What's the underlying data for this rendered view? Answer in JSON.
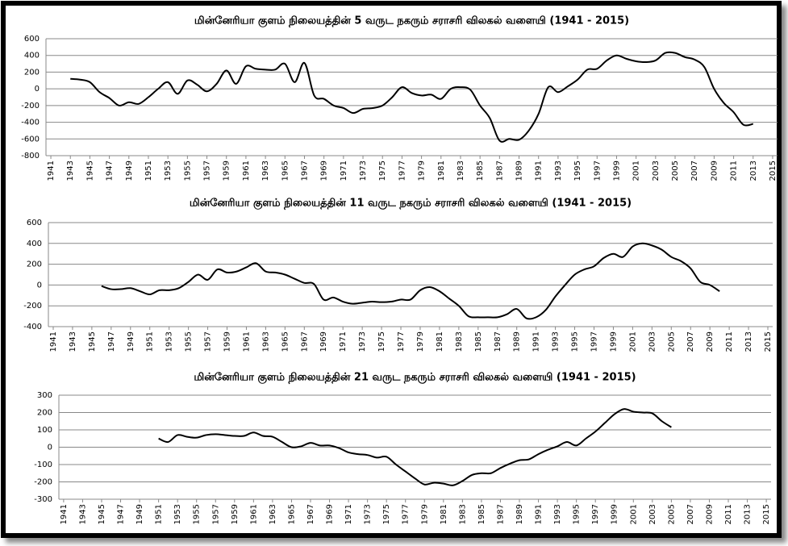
{
  "chart_data": [
    {
      "type": "line",
      "title": "மின்னேரியா குளம் நிலையத்தின் 5  வருட நகரும் சராசரி விலகல் வளையி   (1941 -  2015)",
      "x": [
        1943,
        1944,
        1945,
        1946,
        1947,
        1948,
        1949,
        1950,
        1951,
        1952,
        1953,
        1954,
        1955,
        1956,
        1957,
        1958,
        1959,
        1960,
        1961,
        1962,
        1963,
        1964,
        1965,
        1966,
        1967,
        1968,
        1969,
        1970,
        1971,
        1972,
        1973,
        1974,
        1975,
        1976,
        1977,
        1978,
        1979,
        1980,
        1981,
        1982,
        1983,
        1984,
        1985,
        1986,
        1987,
        1988,
        1989,
        1990,
        1991,
        1992,
        1993,
        1994,
        1995,
        1996,
        1997,
        1998,
        1999,
        2000,
        2001,
        2002,
        2003,
        2004,
        2005,
        2006,
        2007,
        2008,
        2009,
        2010,
        2011,
        2012,
        2013
      ],
      "values": [
        120,
        110,
        80,
        -40,
        -110,
        -200,
        -160,
        -180,
        -100,
        0,
        80,
        -60,
        100,
        50,
        -30,
        60,
        220,
        60,
        270,
        240,
        230,
        230,
        300,
        80,
        310,
        -80,
        -120,
        -200,
        -230,
        -290,
        -240,
        -230,
        -200,
        -100,
        20,
        -50,
        -80,
        -70,
        -120,
        0,
        20,
        -10,
        -200,
        -350,
        -620,
        -600,
        -610,
        -500,
        -300,
        20,
        -40,
        30,
        110,
        230,
        240,
        340,
        400,
        360,
        330,
        320,
        340,
        430,
        430,
        380,
        350,
        260,
        0,
        -170,
        -280,
        -430,
        -420
      ],
      "color": "#000000",
      "xlim": [
        1940.5,
        2015.5
      ],
      "xticks": [
        1941,
        1943,
        1945,
        1947,
        1949,
        1951,
        1953,
        1955,
        1957,
        1959,
        1961,
        1963,
        1965,
        1967,
        1969,
        1971,
        1973,
        1975,
        1977,
        1979,
        1981,
        1983,
        1985,
        1987,
        1989,
        1991,
        1993,
        1995,
        1997,
        1999,
        2001,
        2003,
        2005,
        2007,
        2009,
        2011,
        2013,
        2015
      ],
      "ylim": [
        -800,
        600
      ],
      "yticks": [
        -800,
        -600,
        -400,
        -200,
        0,
        200,
        400,
        600
      ],
      "grid": true
    },
    {
      "type": "line",
      "title": "மின்னேரியா குளம் நிலையத்தின் 11 வருட நகரும் சராசரி விலகல் வளையி   (1941 -  2015)",
      "x": [
        1946,
        1947,
        1948,
        1949,
        1950,
        1951,
        1952,
        1953,
        1954,
        1955,
        1956,
        1957,
        1958,
        1959,
        1960,
        1961,
        1962,
        1963,
        1964,
        1965,
        1966,
        1967,
        1968,
        1969,
        1970,
        1971,
        1972,
        1973,
        1974,
        1975,
        1976,
        1977,
        1978,
        1979,
        1980,
        1981,
        1982,
        1983,
        1984,
        1985,
        1986,
        1987,
        1988,
        1989,
        1990,
        1991,
        1992,
        1993,
        1994,
        1995,
        1996,
        1997,
        1998,
        1999,
        2000,
        2001,
        2002,
        2003,
        2004,
        2005,
        2006,
        2007,
        2008,
        2009,
        2010
      ],
      "values": [
        -10,
        -40,
        -40,
        -30,
        -60,
        -90,
        -50,
        -50,
        -30,
        30,
        100,
        50,
        150,
        120,
        130,
        170,
        210,
        130,
        120,
        100,
        60,
        20,
        10,
        -140,
        -120,
        -160,
        -180,
        -170,
        -160,
        -165,
        -160,
        -140,
        -140,
        -50,
        -20,
        -60,
        -130,
        -200,
        -300,
        -310,
        -310,
        -310,
        -280,
        -230,
        -320,
        -310,
        -240,
        -110,
        0,
        100,
        150,
        180,
        260,
        300,
        270,
        370,
        400,
        380,
        340,
        270,
        230,
        160,
        30,
        0,
        -60
      ],
      "color": "#000000",
      "xlim": [
        1940.5,
        2015.5
      ],
      "xticks": [
        1941,
        1943,
        1945,
        1947,
        1949,
        1951,
        1953,
        1955,
        1957,
        1959,
        1961,
        1963,
        1965,
        1967,
        1969,
        1971,
        1973,
        1975,
        1977,
        1979,
        1981,
        1983,
        1985,
        1987,
        1989,
        1991,
        1993,
        1995,
        1997,
        1999,
        2001,
        2003,
        2005,
        2007,
        2009,
        2011,
        2013,
        2015
      ],
      "ylim": [
        -400,
        600
      ],
      "yticks": [
        -400,
        -200,
        0,
        200,
        400,
        600
      ],
      "grid": true
    },
    {
      "type": "line",
      "title": "மின்னேரியா குளம் நிலையத்தின் 21 வருட நகரும் சராசரி விலகல் வளையி   (1941 -  2015)",
      "x": [
        1951,
        1952,
        1953,
        1954,
        1955,
        1956,
        1957,
        1958,
        1959,
        1960,
        1961,
        1962,
        1963,
        1964,
        1965,
        1966,
        1967,
        1968,
        1969,
        1970,
        1971,
        1972,
        1973,
        1974,
        1975,
        1976,
        1977,
        1978,
        1979,
        1980,
        1981,
        1982,
        1983,
        1984,
        1985,
        1986,
        1987,
        1988,
        1989,
        1990,
        1991,
        1992,
        1993,
        1994,
        1995,
        1996,
        1997,
        1998,
        1999,
        2000,
        2001,
        2002,
        2003,
        2004,
        2005
      ],
      "values": [
        50,
        30,
        70,
        60,
        55,
        70,
        75,
        70,
        65,
        65,
        85,
        65,
        60,
        30,
        0,
        5,
        25,
        10,
        10,
        -5,
        -30,
        -40,
        -45,
        -60,
        -55,
        -100,
        -140,
        -180,
        -215,
        -205,
        -210,
        -220,
        -195,
        -160,
        -150,
        -150,
        -120,
        -95,
        -75,
        -70,
        -40,
        -15,
        5,
        30,
        10,
        50,
        90,
        140,
        190,
        220,
        205,
        200,
        195,
        150,
        115
      ],
      "color": "#000000",
      "xlim": [
        1940.5,
        2015.5
      ],
      "xticks": [
        1941,
        1943,
        1945,
        1947,
        1949,
        1951,
        1953,
        1955,
        1957,
        1959,
        1961,
        1963,
        1965,
        1967,
        1969,
        1971,
        1973,
        1975,
        1977,
        1979,
        1981,
        1983,
        1985,
        1987,
        1989,
        1991,
        1993,
        1995,
        1997,
        1999,
        2001,
        2003,
        2005,
        2007,
        2009,
        2011,
        2013,
        2015
      ],
      "ylim": [
        -300,
        300
      ],
      "yticks": [
        -300,
        -200,
        -100,
        0,
        100,
        200,
        300
      ],
      "grid": true
    }
  ]
}
